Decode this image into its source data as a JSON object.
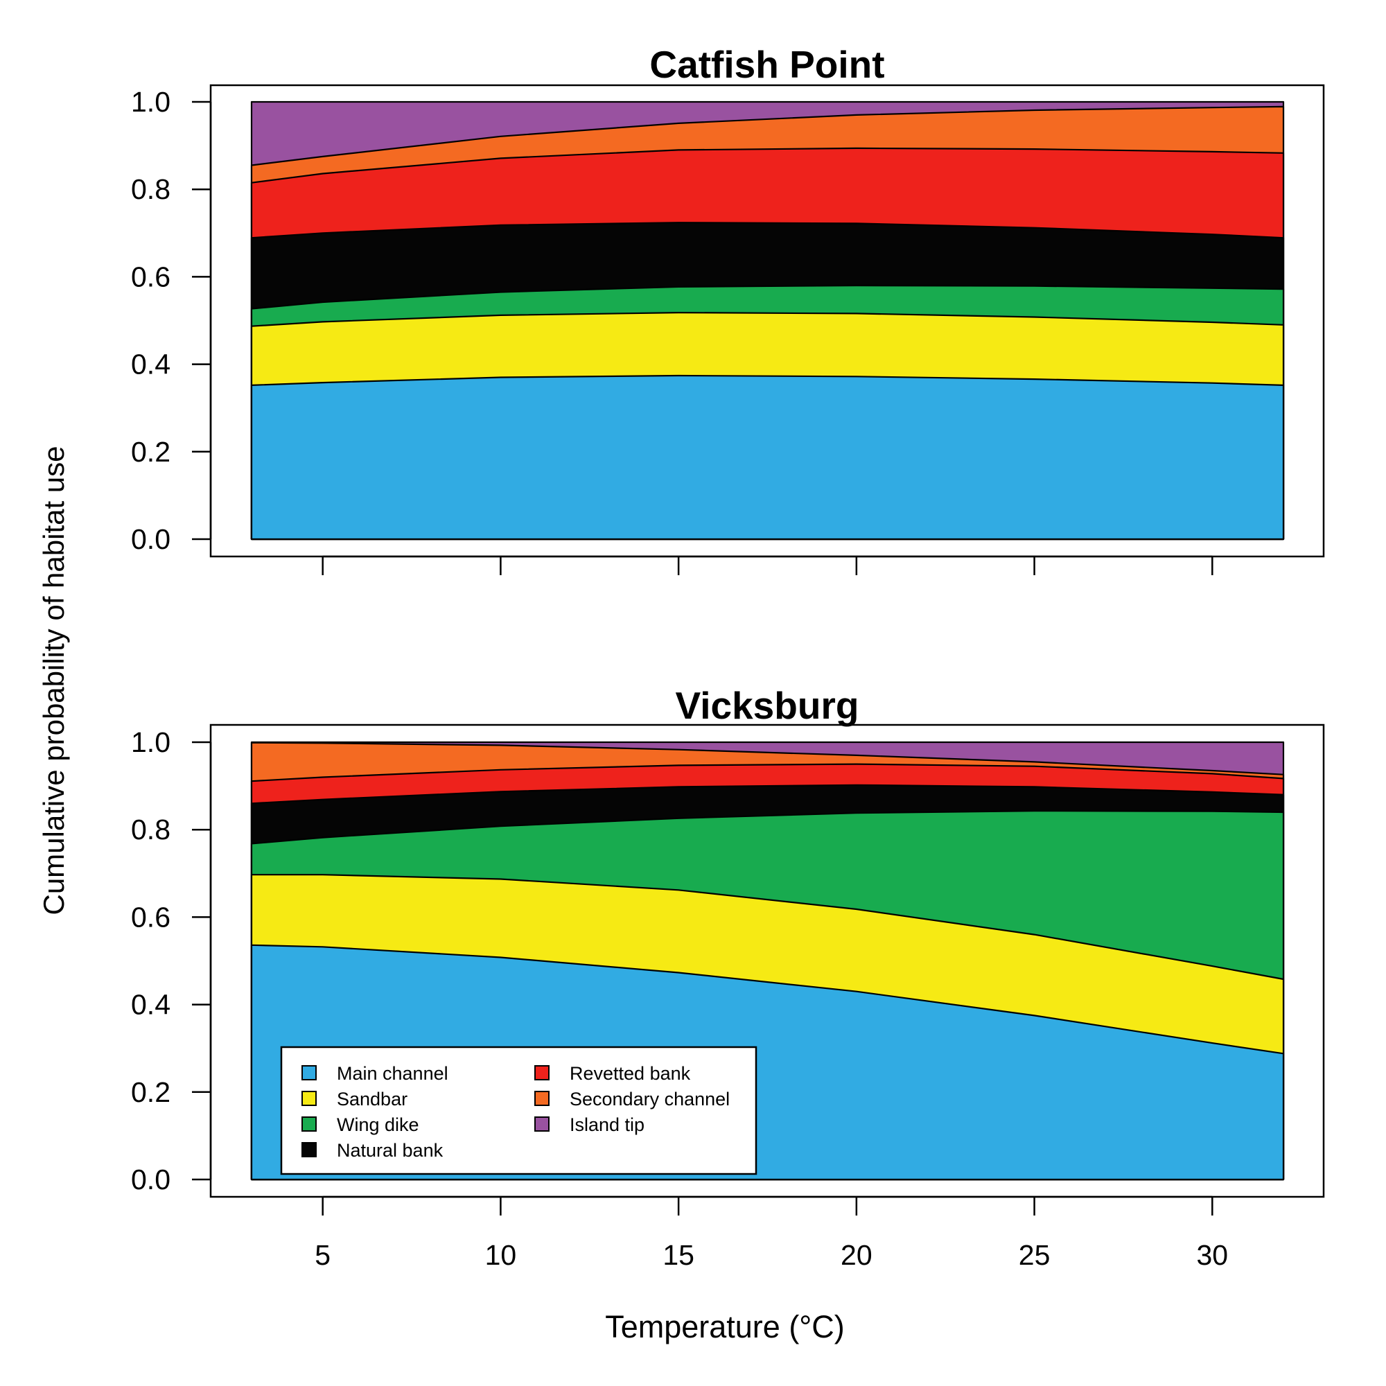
{
  "figure": {
    "ylabel": "Cumulative probability of habitat use",
    "xlabel": "Temperature (°C)"
  },
  "legend": {
    "placement": "bottom-left of lower panel",
    "entries": [
      {
        "label": "Main channel",
        "color": "#31ABE3"
      },
      {
        "label": "Sandbar",
        "color": "#F6EA14"
      },
      {
        "label": "Wing dike",
        "color": "#18AB4F"
      },
      {
        "label": "Natural bank",
        "color": "#050505"
      },
      {
        "label": "Revetted bank",
        "color": "#EE221C"
      },
      {
        "label": "Secondary channel",
        "color": "#F46A22"
      },
      {
        "label": "Island tip",
        "color": "#9952A0"
      }
    ]
  },
  "chart_data": [
    {
      "type": "area",
      "stacked": "cumulative",
      "title": "Catfish Point",
      "xlabel": "Temperature (°C)",
      "ylabel": "Cumulative probability of habitat use",
      "xlim": [
        3,
        32
      ],
      "ylim": [
        0,
        1
      ],
      "xticks": [
        5,
        10,
        15,
        20,
        25,
        30
      ],
      "xtick_labels_shown": false,
      "yticks": [
        0.0,
        0.2,
        0.4,
        0.6,
        0.8,
        1.0
      ],
      "ytick_labels": [
        "0.0",
        "0.2",
        "0.4",
        "0.6",
        "0.8",
        "1.0"
      ],
      "grid": false,
      "x": [
        3,
        5,
        10,
        15,
        20,
        25,
        30,
        32
      ],
      "cumulative_series": [
        {
          "name": "Main channel",
          "color": "#31ABE3",
          "values": [
            0.352,
            0.358,
            0.37,
            0.374,
            0.372,
            0.366,
            0.357,
            0.352
          ]
        },
        {
          "name": "Sandbar",
          "color": "#F6EA14",
          "values": [
            0.487,
            0.497,
            0.512,
            0.518,
            0.516,
            0.508,
            0.496,
            0.49
          ]
        },
        {
          "name": "Wing dike",
          "color": "#18AB4F",
          "values": [
            0.527,
            0.542,
            0.565,
            0.577,
            0.58,
            0.579,
            0.574,
            0.572
          ]
        },
        {
          "name": "Natural bank",
          "color": "#050505",
          "values": [
            0.689,
            0.7,
            0.718,
            0.724,
            0.722,
            0.712,
            0.697,
            0.689
          ]
        },
        {
          "name": "Revetted bank",
          "color": "#EE221C",
          "values": [
            0.815,
            0.836,
            0.871,
            0.89,
            0.894,
            0.892,
            0.886,
            0.883
          ]
        },
        {
          "name": "Secondary channel",
          "color": "#F46A22",
          "values": [
            0.855,
            0.875,
            0.921,
            0.951,
            0.97,
            0.981,
            0.987,
            0.989
          ]
        },
        {
          "name": "Island tip",
          "color": "#9952A0",
          "values": [
            1.0,
            1.0,
            1.0,
            1.0,
            1.0,
            1.0,
            1.0,
            1.0
          ]
        }
      ]
    },
    {
      "type": "area",
      "stacked": "cumulative",
      "title": "Vicksburg",
      "xlabel": "Temperature (°C)",
      "ylabel": "Cumulative probability of habitat use",
      "xlim": [
        3,
        32
      ],
      "ylim": [
        0,
        1
      ],
      "xticks": [
        5,
        10,
        15,
        20,
        25,
        30
      ],
      "xtick_labels": [
        "5",
        "10",
        "15",
        "20",
        "25",
        "30"
      ],
      "yticks": [
        0.0,
        0.2,
        0.4,
        0.6,
        0.8,
        1.0
      ],
      "ytick_labels": [
        "0.0",
        "0.2",
        "0.4",
        "0.6",
        "0.8",
        "1.0"
      ],
      "grid": false,
      "x": [
        3,
        5,
        10,
        15,
        20,
        25,
        30,
        32
      ],
      "cumulative_series": [
        {
          "name": "Main channel",
          "color": "#31ABE3",
          "values": [
            0.536,
            0.532,
            0.508,
            0.473,
            0.43,
            0.375,
            0.312,
            0.288
          ]
        },
        {
          "name": "Sandbar",
          "color": "#F6EA14",
          "values": [
            0.697,
            0.697,
            0.687,
            0.662,
            0.618,
            0.56,
            0.488,
            0.458
          ]
        },
        {
          "name": "Wing dike",
          "color": "#18AB4F",
          "values": [
            0.768,
            0.782,
            0.808,
            0.826,
            0.838,
            0.843,
            0.842,
            0.84
          ]
        },
        {
          "name": "Natural bank",
          "color": "#050505",
          "values": [
            0.86,
            0.869,
            0.887,
            0.898,
            0.902,
            0.898,
            0.886,
            0.88
          ]
        },
        {
          "name": "Revetted bank",
          "color": "#EE221C",
          "values": [
            0.911,
            0.92,
            0.937,
            0.947,
            0.95,
            0.945,
            0.928,
            0.917
          ]
        },
        {
          "name": "Secondary channel",
          "color": "#F46A22",
          "values": [
            0.999,
            0.998,
            0.993,
            0.983,
            0.97,
            0.955,
            0.935,
            0.926
          ]
        },
        {
          "name": "Island tip",
          "color": "#9952A0",
          "values": [
            1.0,
            1.0,
            1.0,
            1.0,
            1.0,
            1.0,
            1.0,
            1.0
          ]
        }
      ]
    }
  ]
}
